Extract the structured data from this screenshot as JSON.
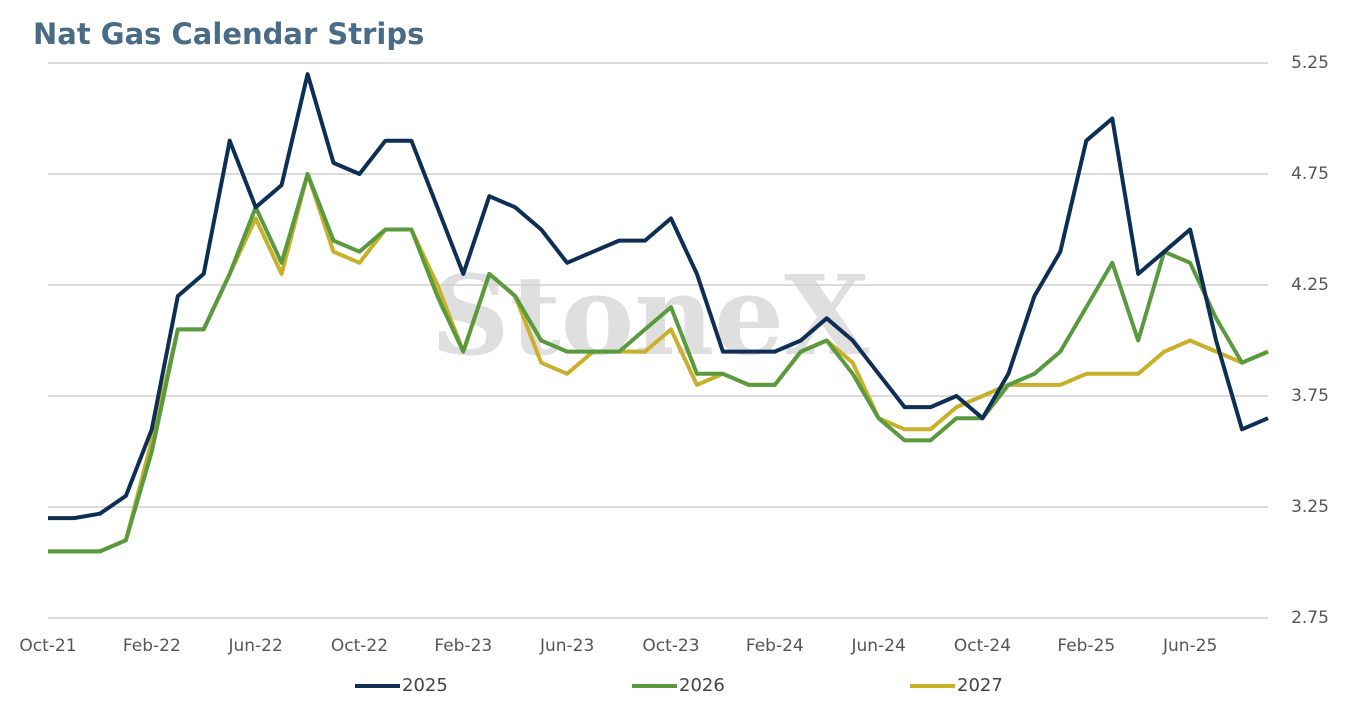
{
  "chart_data": {
    "type": "line",
    "title": "Nat Gas Calendar Strips",
    "watermark": "StoneX",
    "categories": [
      "Oct-21",
      null,
      null,
      null,
      "Feb-22",
      null,
      null,
      null,
      "Jun-22",
      null,
      null,
      null,
      "Oct-22",
      null,
      null,
      null,
      "Feb-23",
      null,
      null,
      null,
      "Jun-23",
      null,
      null,
      null,
      "Oct-23",
      null,
      null,
      null,
      "Feb-24",
      null,
      null,
      null,
      "Jun-24",
      null,
      null,
      null,
      "Oct-24",
      null,
      null,
      null,
      "Feb-25",
      null,
      null,
      null,
      "Jun-25",
      null,
      null,
      null
    ],
    "series": [
      {
        "name": "2025",
        "color": "#0d2f55",
        "values": [
          3.2,
          3.2,
          3.22,
          3.3,
          3.6,
          4.2,
          4.3,
          4.9,
          4.6,
          4.7,
          5.2,
          4.8,
          4.75,
          4.9,
          4.9,
          4.6,
          4.3,
          4.65,
          4.6,
          4.5,
          4.35,
          4.4,
          4.45,
          4.45,
          4.55,
          4.3,
          3.95,
          3.95,
          3.95,
          4.0,
          4.1,
          4.0,
          3.85,
          3.7,
          3.7,
          3.75,
          3.65,
          3.85,
          4.2,
          4.4,
          4.9,
          5.0,
          4.3,
          4.4,
          4.5,
          4.0,
          3.6,
          3.65
        ]
      },
      {
        "name": "2026",
        "color": "#5a9a3e",
        "values": [
          3.05,
          3.05,
          3.05,
          3.1,
          3.5,
          4.05,
          4.05,
          4.3,
          4.6,
          4.35,
          4.75,
          4.45,
          4.4,
          4.5,
          4.5,
          4.2,
          3.95,
          4.3,
          4.2,
          4.0,
          3.95,
          3.95,
          3.95,
          4.05,
          4.15,
          3.85,
          3.85,
          3.8,
          3.8,
          3.95,
          4.0,
          3.85,
          3.65,
          3.55,
          3.55,
          3.65,
          3.65,
          3.8,
          3.85,
          3.95,
          4.15,
          4.35,
          4.0,
          4.4,
          4.35,
          4.1,
          3.9,
          3.95
        ]
      },
      {
        "name": "2027",
        "color": "#c8b02a",
        "values": [
          3.05,
          3.05,
          3.05,
          3.1,
          3.55,
          4.05,
          4.05,
          4.3,
          4.55,
          4.3,
          4.75,
          4.4,
          4.35,
          4.5,
          4.5,
          4.25,
          3.95,
          4.3,
          4.2,
          3.9,
          3.85,
          3.95,
          3.95,
          3.95,
          4.05,
          3.8,
          3.85,
          3.8,
          3.8,
          3.95,
          4.0,
          3.9,
          3.65,
          3.6,
          3.6,
          3.7,
          3.75,
          3.8,
          3.8,
          3.8,
          3.85,
          3.85,
          3.85,
          3.95,
          4.0,
          3.95,
          3.9,
          3.95
        ]
      }
    ],
    "ylim": [
      2.75,
      5.25
    ],
    "yticks": [
      2.75,
      3.25,
      3.75,
      4.25,
      4.75,
      5.25
    ],
    "grid": true,
    "legend": "bottom"
  }
}
